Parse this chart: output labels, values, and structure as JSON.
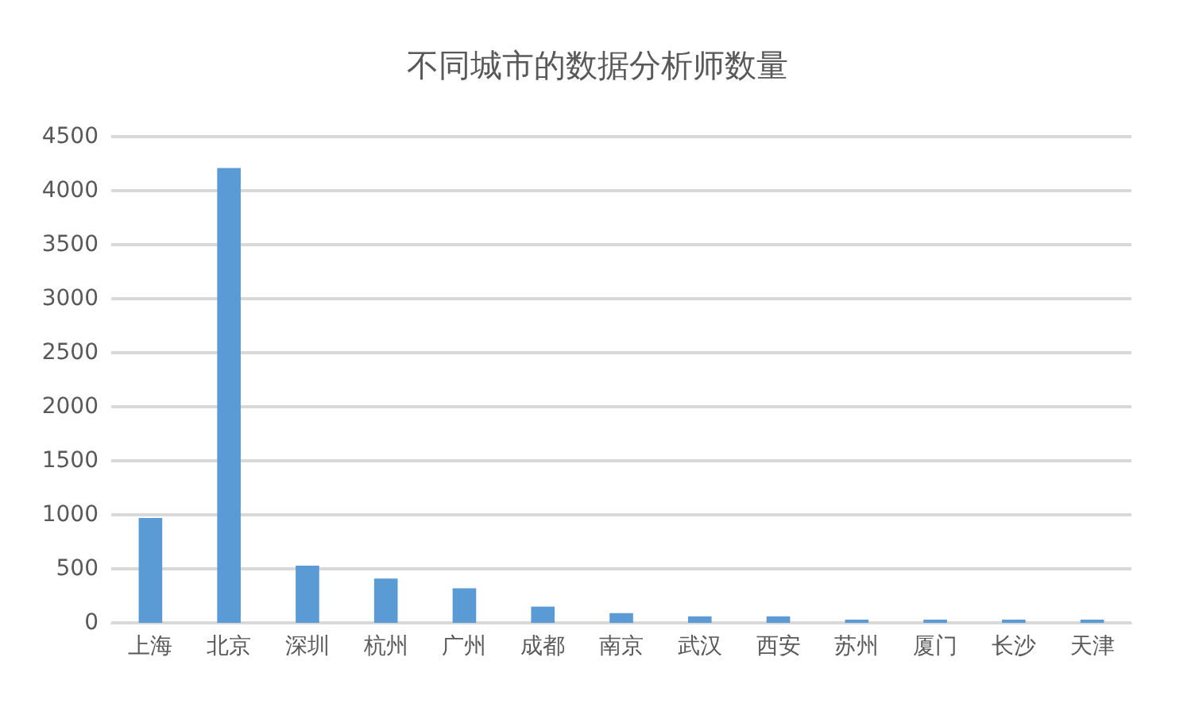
{
  "chart_data": {
    "type": "bar",
    "title": "不同城市的数据分析师数量",
    "categories": [
      "上海",
      "北京",
      "深圳",
      "杭州",
      "广州",
      "成都",
      "南京",
      "武汉",
      "西安",
      "苏州",
      "厦门",
      "长沙",
      "天津"
    ],
    "values": [
      970,
      4210,
      530,
      410,
      320,
      150,
      90,
      60,
      60,
      30,
      30,
      30,
      30
    ],
    "color": "#5b9bd5",
    "ylim": [
      0,
      4500
    ],
    "yticks": [
      0,
      500,
      1000,
      1500,
      2000,
      2500,
      3000,
      3500,
      4000,
      4500
    ],
    "grid": true
  }
}
